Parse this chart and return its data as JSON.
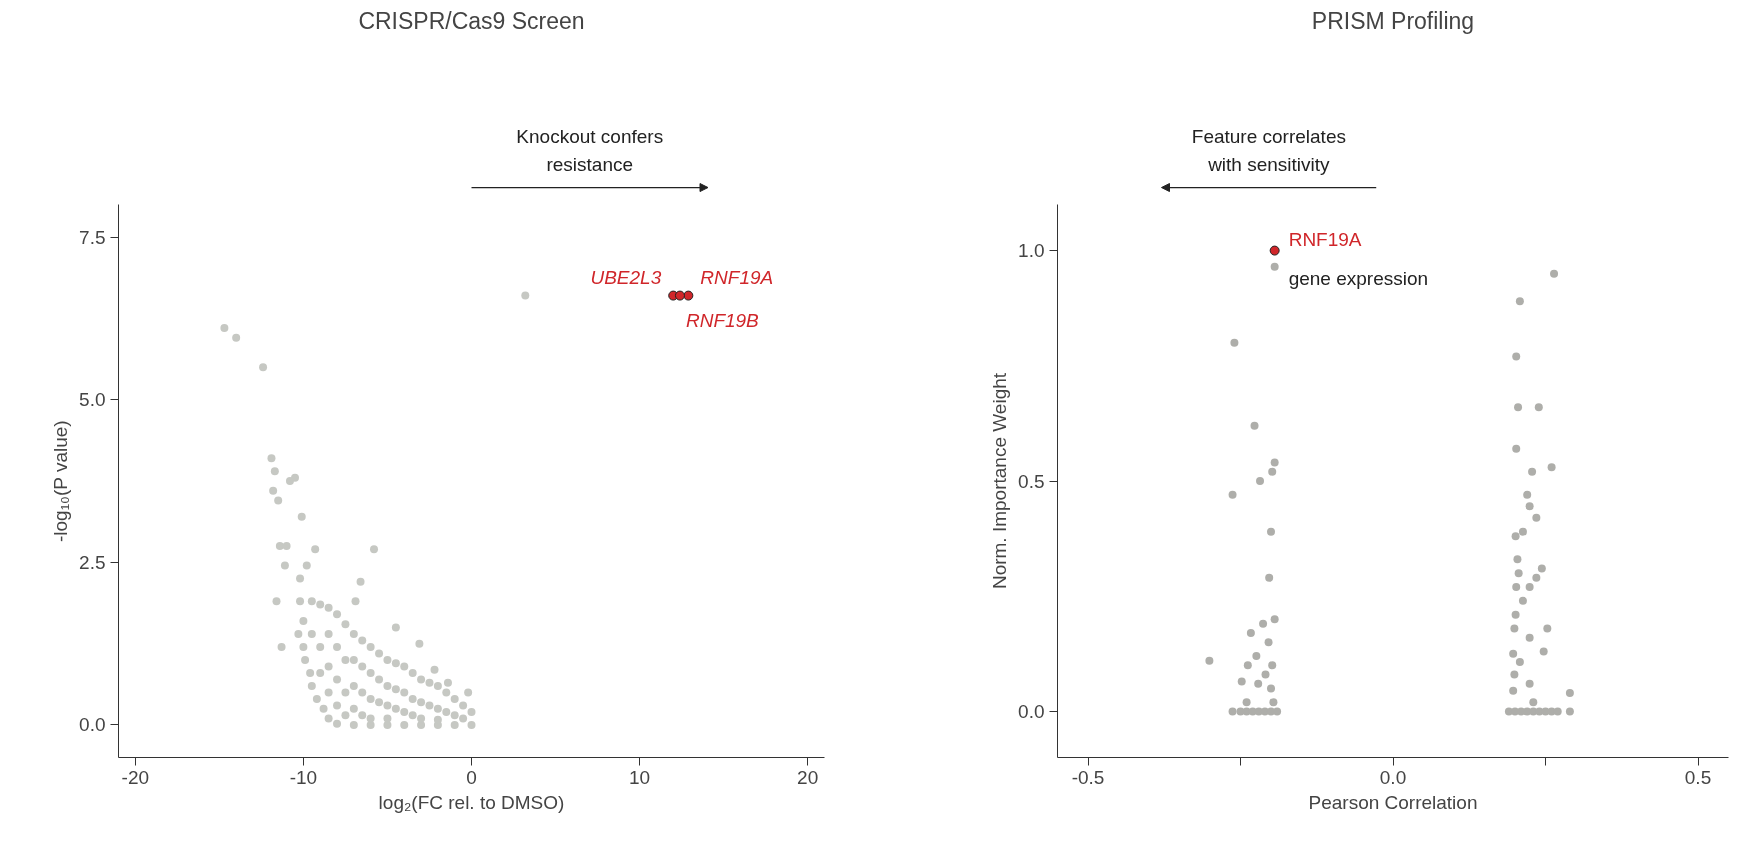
{
  "chart_data": [
    {
      "type": "scatter",
      "title": "CRISPR/Cas9 Screen",
      "xlabel": "log₂(FC rel. to DMSO)",
      "ylabel": "-log₁₀(P value)",
      "xlim": [
        -21,
        21
      ],
      "ylim": [
        -0.5,
        8.0
      ],
      "xticks": [
        -20,
        -10,
        0,
        10,
        20
      ],
      "yticks": [
        {
          "value": 0,
          "label": "0.0"
        },
        2.5,
        {
          "value": 5,
          "label": "5.0"
        },
        7.5
      ],
      "grid": false,
      "marker": "circle",
      "series": [
        {
          "color": "#c6c8c3",
          "x": [
            -10.2,
            -10.0,
            -10.3,
            -10.0,
            -9.9,
            -9.6,
            -9.5,
            -9.2,
            -8.8,
            -8.5,
            -8,
            -7,
            -6,
            -5,
            -4,
            -3,
            -2,
            -1,
            0,
            -9.5,
            -9,
            -8.5,
            -8,
            -7.5,
            -7,
            -6.5,
            -6,
            -5.5,
            -5,
            -4.5,
            -4,
            -3.5,
            -3,
            -2.5,
            -2,
            -1.5,
            -1,
            -0.5,
            0,
            -9.5,
            -9,
            -9,
            -8.5,
            -8.5,
            -8.5,
            -8,
            -8,
            -8,
            -7.5,
            -7.5,
            -7.5,
            -7,
            -7,
            -7,
            -6.5,
            -6.5,
            -6.5,
            -6,
            -6,
            -6,
            -5.5,
            -5.5,
            -5,
            -5,
            -5,
            -4.5,
            -4.5,
            -4,
            -4,
            -3.5,
            -3.5,
            -3,
            -3,
            -2.5,
            -2,
            -2,
            -1.5,
            -1,
            -0.5,
            -14.7,
            -14.0,
            -12.4,
            -11.9,
            -11.7,
            -10.5,
            -10.8,
            -11.8,
            -11.5,
            -10.1,
            -11.4,
            -11.0,
            -9.3,
            -5.8,
            -11.1,
            -9.8,
            -10.2,
            -6.6,
            -6.9,
            -11.6,
            -11.3,
            -4.5,
            -3.1,
            -2.2,
            -1.4,
            -0.2,
            3.2
          ],
          "values": [
            1.9,
            1.6,
            1.4,
            1.2,
            1.0,
            0.8,
            0.6,
            0.4,
            0.25,
            0.1,
            0.02,
            0,
            0,
            0,
            0,
            0,
            0,
            0,
            0,
            1.9,
            1.85,
            1.8,
            1.7,
            1.55,
            1.4,
            1.3,
            1.2,
            1.1,
            1.0,
            0.95,
            0.9,
            0.8,
            0.7,
            0.65,
            0.6,
            0.5,
            0.4,
            0.3,
            0.2,
            1.4,
            1.2,
            0.8,
            1.4,
            0.9,
            0.5,
            1.2,
            0.7,
            0.3,
            1.0,
            0.5,
            0.15,
            1.0,
            0.6,
            0.25,
            0.9,
            0.5,
            0.15,
            0.8,
            0.4,
            0.1,
            0.7,
            0.35,
            0.6,
            0.3,
            0.1,
            0.55,
            0.25,
            0.5,
            0.2,
            0.4,
            0.15,
            0.35,
            0.1,
            0.3,
            0.25,
            0.08,
            0.2,
            0.15,
            0.1,
            6.1,
            5.95,
            5.5,
            4.1,
            3.9,
            3.8,
            3.75,
            3.6,
            3.45,
            3.2,
            2.75,
            2.75,
            2.7,
            2.7,
            2.45,
            2.45,
            2.25,
            2.2,
            1.9,
            1.9,
            1.2,
            1.5,
            1.25,
            0.85,
            0.65,
            0.5,
            6.6
          ]
        },
        {
          "color": "#d0262a",
          "x": [
            12.0,
            12.9,
            12.4
          ],
          "values": [
            6.6,
            6.6,
            6.6
          ]
        }
      ],
      "annotations": [
        "Knockout confers\nresistance",
        {
          "text": "UBE2L3",
          "x": 12.0,
          "y": 6.6
        },
        {
          "text": "RNF19A",
          "x": 12.9,
          "y": 6.6
        },
        {
          "text": "RNF19B",
          "x": 12.4,
          "y": 6.6
        }
      ]
    },
    {
      "type": "scatter",
      "title": "PRISM Profiling",
      "xlabel": "Pearson Correlation",
      "ylabel": "Norm. Importance Weight",
      "xlim": [
        -0.55,
        0.55
      ],
      "ylim": [
        -0.1,
        1.1
      ],
      "xticks": [
        -0.5,
        {
          "value": -0.25,
          "label": null
        },
        {
          "value": 0,
          "label": "0.0"
        },
        {
          "value": 0.25,
          "label": null
        },
        0.5
      ],
      "yticks": [
        {
          "value": 0,
          "label": "0.0"
        },
        0.5,
        {
          "value": 1,
          "label": "1.0"
        }
      ],
      "grid": false,
      "marker": "circle",
      "series": [
        {
          "color": "#aeaeaa",
          "x": [
            -0.26,
            -0.227,
            -0.263,
            -0.218,
            -0.198,
            -0.194,
            -0.2,
            -0.203,
            -0.194,
            -0.213,
            -0.233,
            -0.204,
            -0.301,
            -0.224,
            -0.238,
            -0.198,
            -0.209,
            -0.248,
            -0.221,
            -0.2,
            -0.24,
            -0.196,
            -0.263,
            -0.25,
            -0.24,
            -0.23,
            -0.22,
            -0.21,
            -0.2,
            -0.19,
            -0.194,
            0.264,
            0.208,
            0.202,
            0.205,
            0.239,
            0.202,
            0.228,
            0.26,
            0.22,
            0.224,
            0.235,
            0.201,
            0.213,
            0.204,
            0.244,
            0.206,
            0.235,
            0.202,
            0.224,
            0.213,
            0.201,
            0.199,
            0.253,
            0.224,
            0.247,
            0.197,
            0.208,
            0.199,
            0.224,
            0.197,
            0.29,
            0.23,
            0.19,
            0.2,
            0.21,
            0.22,
            0.23,
            0.24,
            0.25,
            0.26,
            0.27,
            0.29
          ],
          "values": [
            0.8,
            0.62,
            0.47,
            0.5,
            0.52,
            0.54,
            0.39,
            0.29,
            0.2,
            0.19,
            0.17,
            0.15,
            0.11,
            0.12,
            0.1,
            0.1,
            0.08,
            0.065,
            0.06,
            0.05,
            0.02,
            0.02,
            0,
            0,
            0,
            0,
            0,
            0,
            0,
            0,
            0.965,
            0.95,
            0.89,
            0.77,
            0.66,
            0.66,
            0.57,
            0.52,
            0.53,
            0.47,
            0.445,
            0.42,
            0.38,
            0.39,
            0.33,
            0.31,
            0.3,
            0.29,
            0.27,
            0.27,
            0.24,
            0.21,
            0.18,
            0.18,
            0.16,
            0.13,
            0.125,
            0.107,
            0.08,
            0.06,
            0.045,
            0.04,
            0.02,
            0,
            0,
            0,
            0,
            0,
            0,
            0,
            0,
            0,
            0
          ]
        },
        {
          "color": "#d0262a",
          "x": [
            -0.194
          ],
          "values": [
            1.0
          ]
        }
      ],
      "annotations": [
        "Feature correlates\nwith sensitivity",
        {
          "text": "RNF19A",
          "x": -0.194,
          "y": 1.0
        },
        {
          "text": "gene expression",
          "x": -0.194,
          "y": 0.965
        }
      ]
    }
  ]
}
